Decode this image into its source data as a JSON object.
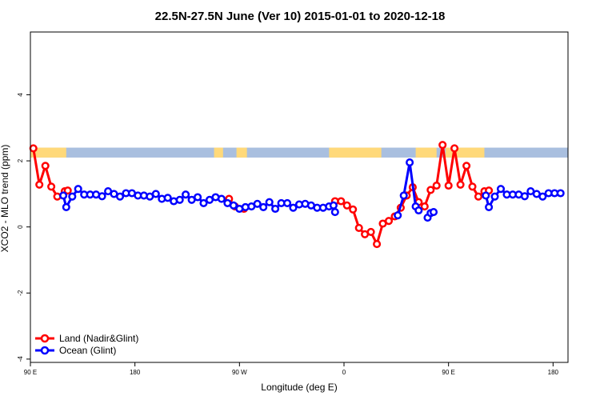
{
  "chart_data": {
    "type": "line",
    "title": "22.5N-27.5N June (Ver 10)   2015-01-01 to 2020-12-18",
    "xlabel": "Longitude (deg E)",
    "ylabel": "XCO2 - MLO trend (ppm)",
    "xlim": [
      -90,
      270
    ],
    "ylim": [
      -4.1,
      5.9
    ],
    "grid": false,
    "legend_position": "bottom-left",
    "x_ticks": [
      {
        "value": -90,
        "label": "90 E"
      },
      {
        "value": -20,
        "label": "180"
      },
      {
        "value": 50,
        "label": "90 W"
      },
      {
        "value": 120,
        "label": "0"
      },
      {
        "value": 190,
        "label": "90 E"
      },
      {
        "value": 260,
        "label": "180"
      }
    ],
    "y_ticks": [
      {
        "value": -4,
        "label": "-4"
      },
      {
        "value": -2,
        "label": "-2"
      },
      {
        "value": 0,
        "label": "0"
      },
      {
        "value": 2,
        "label": "2"
      },
      {
        "value": 4,
        "label": "4"
      }
    ],
    "land_strip": {
      "y_range": [
        2.1,
        2.4
      ],
      "ocean_color": "#a9bfdf",
      "land_color": "#ffd97a",
      "land_segments": [
        [
          -90,
          -66
        ],
        [
          33,
          39
        ],
        [
          48,
          55
        ],
        [
          110,
          145
        ],
        [
          168,
          182
        ],
        [
          188,
          214
        ]
      ]
    },
    "series": [
      {
        "name": "Land (Nadir&Glint)",
        "color": "#ff0000",
        "segments": [
          [
            [
              -88,
              2.38
            ],
            [
              -84,
              1.28
            ],
            [
              -80,
              1.85
            ],
            [
              -76,
              1.22
            ],
            [
              -72,
              0.92
            ],
            [
              -67,
              1.08
            ],
            [
              -65,
              1.1
            ]
          ],
          [
            [
              43,
              0.85
            ],
            [
              47,
              0.62
            ],
            [
              53,
              0.55
            ]
          ],
          [
            [
              114,
              0.78
            ],
            [
              118,
              0.78
            ],
            [
              122,
              0.65
            ],
            [
              126,
              0.53
            ],
            [
              130,
              -0.03
            ],
            [
              134,
              -0.22
            ],
            [
              138,
              -0.15
            ],
            [
              142,
              -0.52
            ],
            [
              146,
              0.1
            ],
            [
              150,
              0.18
            ],
            [
              154,
              0.32
            ],
            [
              158,
              0.58
            ],
            [
              162,
              0.95
            ],
            [
              166,
              1.2
            ],
            [
              170,
              0.75
            ],
            [
              174,
              0.62
            ],
            [
              178,
              1.12
            ],
            [
              182,
              1.25
            ],
            [
              186,
              2.48
            ],
            [
              190,
              1.25
            ],
            [
              194,
              2.38
            ],
            [
              198,
              1.28
            ],
            [
              202,
              1.85
            ],
            [
              206,
              1.22
            ],
            [
              210,
              0.92
            ],
            [
              214,
              1.08
            ],
            [
              217,
              1.1
            ]
          ]
        ]
      },
      {
        "name": "Ocean (Glint)",
        "color": "#0000ff",
        "segments": [
          [
            [
              -68,
              0.95
            ],
            [
              -66,
              0.6
            ],
            [
              -62,
              0.92
            ],
            [
              -58,
              1.15
            ],
            [
              -54,
              0.98
            ],
            [
              -50,
              0.98
            ],
            [
              -46,
              0.98
            ],
            [
              -42,
              0.93
            ],
            [
              -38,
              1.08
            ],
            [
              -34,
              1.0
            ],
            [
              -30,
              0.92
            ],
            [
              -26,
              1.02
            ],
            [
              -22,
              1.02
            ],
            [
              -18,
              0.95
            ],
            [
              -14,
              0.95
            ],
            [
              -10,
              0.92
            ],
            [
              -6,
              1.0
            ],
            [
              -2,
              0.85
            ],
            [
              2,
              0.88
            ],
            [
              6,
              0.78
            ],
            [
              10,
              0.82
            ],
            [
              14,
              0.98
            ],
            [
              18,
              0.82
            ],
            [
              22,
              0.9
            ],
            [
              26,
              0.72
            ],
            [
              30,
              0.82
            ],
            [
              34,
              0.9
            ],
            [
              38,
              0.85
            ],
            [
              42,
              0.72
            ],
            [
              46,
              0.65
            ],
            [
              50,
              0.55
            ],
            [
              54,
              0.6
            ],
            [
              58,
              0.62
            ],
            [
              62,
              0.7
            ],
            [
              66,
              0.6
            ],
            [
              70,
              0.75
            ],
            [
              74,
              0.55
            ],
            [
              78,
              0.72
            ],
            [
              82,
              0.72
            ],
            [
              86,
              0.58
            ],
            [
              90,
              0.68
            ],
            [
              94,
              0.7
            ],
            [
              98,
              0.65
            ],
            [
              102,
              0.58
            ],
            [
              106,
              0.58
            ],
            [
              110,
              0.62
            ],
            [
              113,
              0.65
            ],
            [
              114,
              0.45
            ]
          ],
          [
            [
              156,
              0.35
            ],
            [
              160,
              0.95
            ],
            [
              164,
              1.95
            ],
            [
              168,
              0.62
            ],
            [
              170,
              0.5
            ]
          ],
          [
            [
              176,
              0.28
            ],
            [
              178,
              0.42
            ],
            [
              180,
              0.45
            ]
          ],
          [
            [
              215,
              0.95
            ],
            [
              217,
              0.6
            ],
            [
              221,
              0.92
            ],
            [
              225,
              1.15
            ],
            [
              229,
              0.98
            ],
            [
              233,
              0.98
            ],
            [
              237,
              0.98
            ],
            [
              241,
              0.93
            ],
            [
              245,
              1.08
            ],
            [
              249,
              1.0
            ],
            [
              253,
              0.92
            ],
            [
              257,
              1.02
            ],
            [
              261,
              1.02
            ],
            [
              265,
              1.02
            ]
          ]
        ]
      }
    ]
  }
}
